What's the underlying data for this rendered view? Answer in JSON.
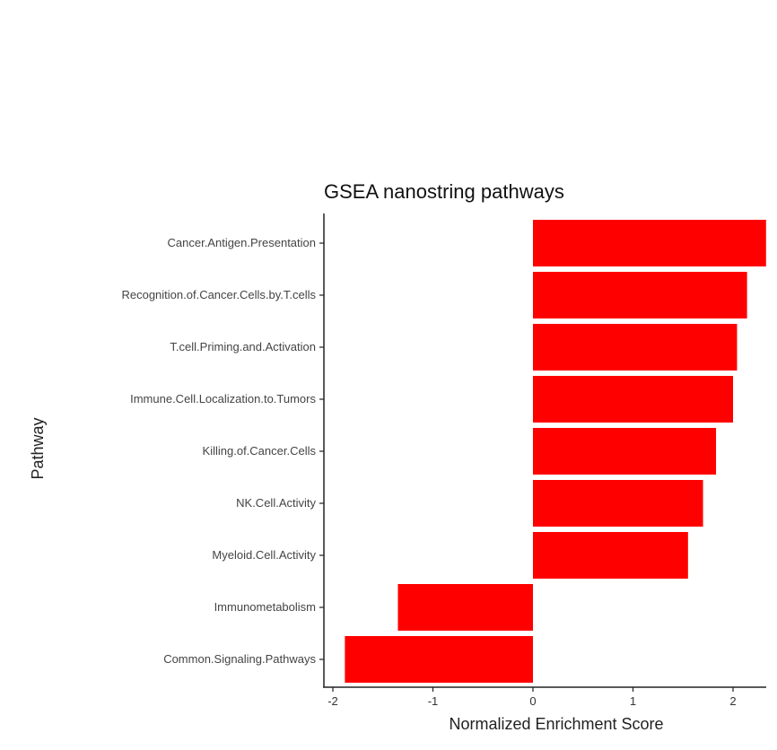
{
  "chart_data": {
    "type": "bar",
    "orientation": "horizontal",
    "title": "GSEA nanostring pathways",
    "xlabel": "Normalized Enrichment Score",
    "ylabel": "Pathway",
    "categories": [
      "Cancer.Antigen.Presentation",
      "Recognition.of.Cancer.Cells.by.T.cells",
      "T.cell.Priming.and.Activation",
      "Immune.Cell.Localization.to.Tumors",
      "Killing.of.Cancer.Cells",
      "NK.Cell.Activity",
      "Myeloid.Cell.Activity",
      "Immunometabolism",
      "Common.Signaling.Pathways"
    ],
    "values": [
      2.33,
      2.14,
      2.04,
      2.0,
      1.83,
      1.7,
      1.55,
      -1.35,
      -1.88
    ],
    "xlim": [
      -2.1,
      2.33
    ],
    "xticks": [
      "-2",
      "-1",
      "0",
      "1",
      "2"
    ],
    "bar_color": "#ff0000",
    "grid": false
  }
}
